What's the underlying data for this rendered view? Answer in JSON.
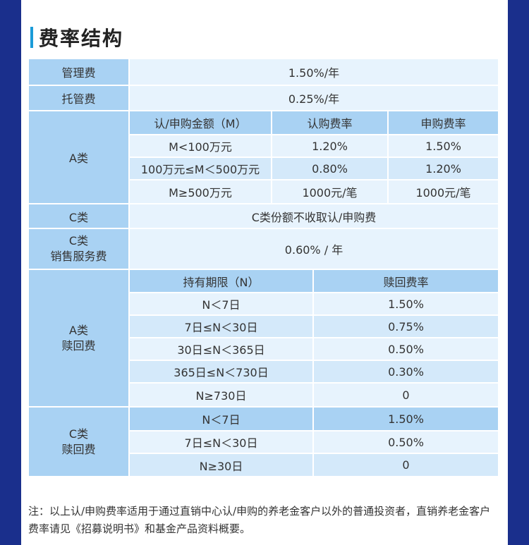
{
  "heading": "费率结构",
  "rows": {
    "mgmt": {
      "label": "管理费",
      "value": "1.50%/年"
    },
    "custody": {
      "label": "托管费",
      "value": "0.25%/年"
    },
    "class_a": {
      "label": "A类",
      "headers": [
        "认/申购金额（M）",
        "认购费率",
        "申购费率"
      ],
      "rows": [
        [
          "M<100万元",
          "1.20%",
          "1.50%"
        ],
        [
          "100万元≤M＜500万元",
          "0.80%",
          "1.20%"
        ],
        [
          "M≥500万元",
          "1000元/笔",
          "1000元/笔"
        ]
      ]
    },
    "class_c": {
      "label": "C类",
      "value": "C类份额不收取认/申购费"
    },
    "class_c_service": {
      "label_line1": "C类",
      "label_line2": "销售服务费",
      "value": "0.60% / 年"
    },
    "a_redeem": {
      "label_line1": "A类",
      "label_line2": "赎回费",
      "headers": [
        "持有期限（N）",
        "赎回费率"
      ],
      "rows": [
        [
          "N＜7日",
          "1.50%"
        ],
        [
          "7日≤N＜30日",
          "0.75%"
        ],
        [
          "30日≤N＜365日",
          "0.50%"
        ],
        [
          "365日≤N＜730日",
          "0.30%"
        ],
        [
          "N≥730日",
          "0"
        ]
      ]
    },
    "c_redeem": {
      "label_line1": "C类",
      "label_line2": "赎回费",
      "rows": [
        [
          "N＜7日",
          "1.50%"
        ],
        [
          "7日≤N＜30日",
          "0.50%"
        ],
        [
          "N≥30日",
          "0"
        ]
      ]
    }
  },
  "note": "注：以上认/申购费率适用于通过直销中心认/申购的养老金客户以外的普通投资者，直销养老金客户费率请见《招募说明书》和基金产品资料概要。",
  "colors": {
    "side": "#1a2f8c",
    "accent": "#1b9bd8",
    "label_bg": "#a9d2f3",
    "value_bg": "#e7f3fd"
  }
}
